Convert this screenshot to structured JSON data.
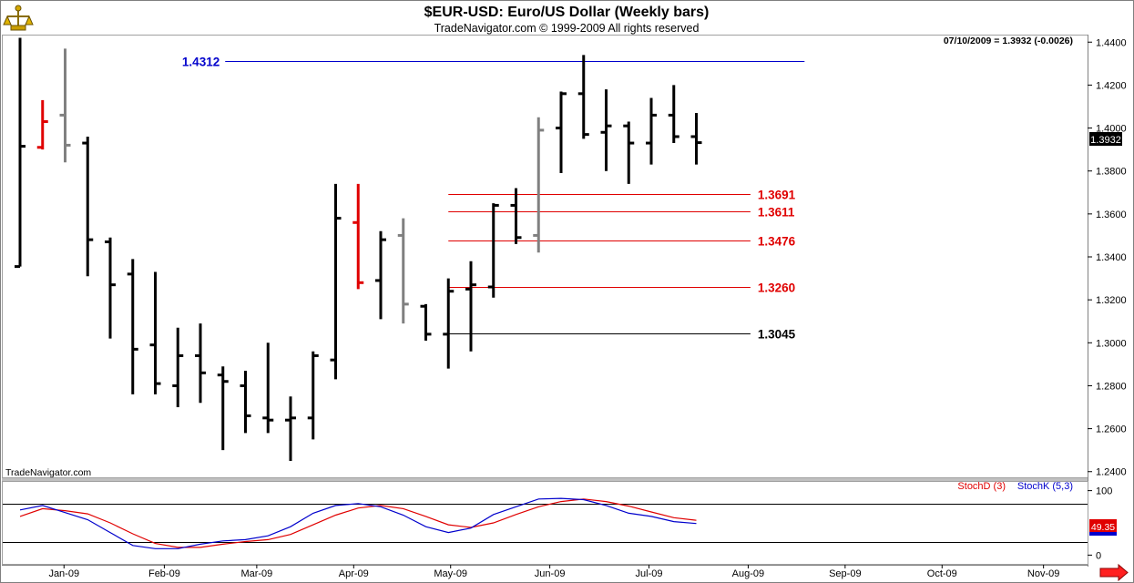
{
  "chart_data": {
    "type": "ohlc",
    "title": "$EUR-USD:  Euro/US Dollar  (Weekly bars)",
    "subtitle": "TradeNavigator.com © 1999-2009 All rights reserved",
    "last_bar_info": "07/10/2009 = 1.3932 (-0.0026)",
    "watermark": "TradeNavigator.com",
    "price_axis": {
      "ticks": [
        "1.4400",
        "1.4200",
        "1.4000",
        "1.3800",
        "1.3600",
        "1.3400",
        "1.3200",
        "1.3000",
        "1.2800",
        "1.2600",
        "1.2400"
      ],
      "range": [
        1.2365,
        1.4435
      ],
      "last_price_badge": "1.3932"
    },
    "x_axis": {
      "month_labels": [
        "Jan-09",
        "Feb-09",
        "Mar-09",
        "Apr-09",
        "May-09",
        "Jun-09",
        "Jul-09",
        "Aug-09",
        "Sep-09",
        "Oct-09",
        "Nov-09"
      ],
      "month_start_week_index": [
        1.95,
        6.4,
        10.5,
        14.8,
        19.1,
        23.5,
        27.9,
        32.3,
        36.6,
        40.9,
        45.4
      ]
    },
    "bars": [
      {
        "week": 0,
        "open": 1.3355,
        "high": 1.442,
        "low": 1.3355,
        "close": 1.3915,
        "color": "#000000"
      },
      {
        "week": 1,
        "open": 1.391,
        "high": 1.413,
        "low": 1.39,
        "close": 1.403,
        "color": "#e00000"
      },
      {
        "week": 2,
        "open": 1.406,
        "high": 1.437,
        "low": 1.384,
        "close": 1.392,
        "color": "#808080"
      },
      {
        "week": 3,
        "open": 1.393,
        "high": 1.396,
        "low": 1.331,
        "close": 1.348,
        "color": "#000000"
      },
      {
        "week": 4,
        "open": 1.347,
        "high": 1.349,
        "low": 1.302,
        "close": 1.327,
        "color": "#000000"
      },
      {
        "week": 5,
        "open": 1.332,
        "high": 1.339,
        "low": 1.276,
        "close": 1.297,
        "color": "#000000"
      },
      {
        "week": 6,
        "open": 1.299,
        "high": 1.333,
        "low": 1.276,
        "close": 1.281,
        "color": "#000000"
      },
      {
        "week": 7,
        "open": 1.28,
        "high": 1.307,
        "low": 1.27,
        "close": 1.294,
        "color": "#000000"
      },
      {
        "week": 8,
        "open": 1.294,
        "high": 1.309,
        "low": 1.272,
        "close": 1.286,
        "color": "#000000"
      },
      {
        "week": 9,
        "open": 1.285,
        "high": 1.289,
        "low": 1.25,
        "close": 1.282,
        "color": "#000000"
      },
      {
        "week": 10,
        "open": 1.28,
        "high": 1.287,
        "low": 1.258,
        "close": 1.266,
        "color": "#000000"
      },
      {
        "week": 11,
        "open": 1.265,
        "high": 1.3,
        "low": 1.258,
        "close": 1.264,
        "color": "#000000"
      },
      {
        "week": 12,
        "open": 1.264,
        "high": 1.275,
        "low": 1.245,
        "close": 1.265,
        "color": "#000000"
      },
      {
        "week": 13,
        "open": 1.265,
        "high": 1.296,
        "low": 1.255,
        "close": 1.294,
        "color": "#000000"
      },
      {
        "week": 14,
        "open": 1.292,
        "high": 1.374,
        "low": 1.283,
        "close": 1.358,
        "color": "#000000"
      },
      {
        "week": 15,
        "open": 1.356,
        "high": 1.374,
        "low": 1.325,
        "close": 1.328,
        "color": "#e00000"
      },
      {
        "week": 16,
        "open": 1.329,
        "high": 1.352,
        "low": 1.311,
        "close": 1.348,
        "color": "#000000"
      },
      {
        "week": 17,
        "open": 1.35,
        "high": 1.358,
        "low": 1.309,
        "close": 1.318,
        "color": "#808080"
      },
      {
        "week": 18,
        "open": 1.317,
        "high": 1.318,
        "low": 1.301,
        "close": 1.304,
        "color": "#000000"
      },
      {
        "week": 19,
        "open": 1.304,
        "high": 1.33,
        "low": 1.288,
        "close": 1.324,
        "color": "#000000"
      },
      {
        "week": 20,
        "open": 1.325,
        "high": 1.338,
        "low": 1.296,
        "close": 1.327,
        "color": "#000000"
      },
      {
        "week": 21,
        "open": 1.326,
        "high": 1.365,
        "low": 1.321,
        "close": 1.364,
        "color": "#000000"
      },
      {
        "week": 22,
        "open": 1.364,
        "high": 1.372,
        "low": 1.346,
        "close": 1.349,
        "color": "#000000"
      },
      {
        "week": 23,
        "open": 1.35,
        "high": 1.405,
        "low": 1.342,
        "close": 1.399,
        "color": "#808080"
      },
      {
        "week": 24,
        "open": 1.4,
        "high": 1.417,
        "low": 1.379,
        "close": 1.416,
        "color": "#000000"
      },
      {
        "week": 25,
        "open": 1.416,
        "high": 1.434,
        "low": 1.395,
        "close": 1.397,
        "color": "#000000"
      },
      {
        "week": 26,
        "open": 1.398,
        "high": 1.418,
        "low": 1.38,
        "close": 1.401,
        "color": "#000000"
      },
      {
        "week": 27,
        "open": 1.401,
        "high": 1.403,
        "low": 1.374,
        "close": 1.393,
        "color": "#000000"
      },
      {
        "week": 28,
        "open": 1.393,
        "high": 1.414,
        "low": 1.383,
        "close": 1.406,
        "color": "#000000"
      },
      {
        "week": 29,
        "open": 1.406,
        "high": 1.42,
        "low": 1.393,
        "close": 1.396,
        "color": "#000000"
      },
      {
        "week": 30,
        "open": 1.396,
        "high": 1.407,
        "low": 1.383,
        "close": 1.3932,
        "color": "#000000"
      }
    ],
    "levels": [
      {
        "label": "1.4312",
        "value": 1.4312,
        "color": "#0000cc",
        "label_side": "left",
        "x_from_week": 9.1,
        "x_to_week": 34.8
      },
      {
        "label": "1.3691",
        "value": 1.3691,
        "color": "#e00000",
        "label_side": "right",
        "x_from_week": 19.0,
        "x_to_week": 32.4
      },
      {
        "label": "1.3611",
        "value": 1.3611,
        "color": "#e00000",
        "label_side": "right",
        "x_from_week": 19.0,
        "x_to_week": 32.4
      },
      {
        "label": "1.3476",
        "value": 1.3476,
        "color": "#e00000",
        "label_side": "right",
        "x_from_week": 19.0,
        "x_to_week": 32.4
      },
      {
        "label": "1.3260",
        "value": 1.326,
        "color": "#e00000",
        "label_side": "right",
        "x_from_week": 19.0,
        "x_to_week": 32.4
      },
      {
        "label": "1.3045",
        "value": 1.3045,
        "color": "#000000",
        "label_side": "right",
        "x_from_week": 19.0,
        "x_to_week": 32.4
      }
    ],
    "stochastic": {
      "legend": [
        {
          "name": "StochD (3)",
          "color": "#e00000"
        },
        {
          "name": "StochK (5,3)",
          "color": "#0000cc"
        }
      ],
      "axis_ticks": [
        "100",
        "0"
      ],
      "axis_ticks_values": [
        100,
        0
      ],
      "upper_line": 80,
      "lower_line": 20,
      "range": [
        -15,
        115
      ],
      "last_value_badge": "49.35",
      "stoch_k": [
        70,
        77,
        66,
        55,
        35,
        15,
        10,
        10,
        17,
        22,
        24,
        30,
        44,
        65,
        77,
        80,
        75,
        62,
        44,
        35,
        42,
        63,
        75,
        87,
        88,
        86,
        77,
        65,
        60,
        52,
        49
      ],
      "stoch_d": [
        60,
        72,
        69,
        64,
        50,
        33,
        18,
        12,
        12,
        17,
        21,
        24,
        32,
        47,
        62,
        73,
        77,
        72,
        60,
        47,
        43,
        50,
        63,
        75,
        83,
        87,
        83,
        76,
        67,
        58,
        54
      ]
    }
  },
  "icons": {
    "logo": "trade-navigator-emblem-icon",
    "scroll_arrow": "red-right-arrow-icon"
  }
}
